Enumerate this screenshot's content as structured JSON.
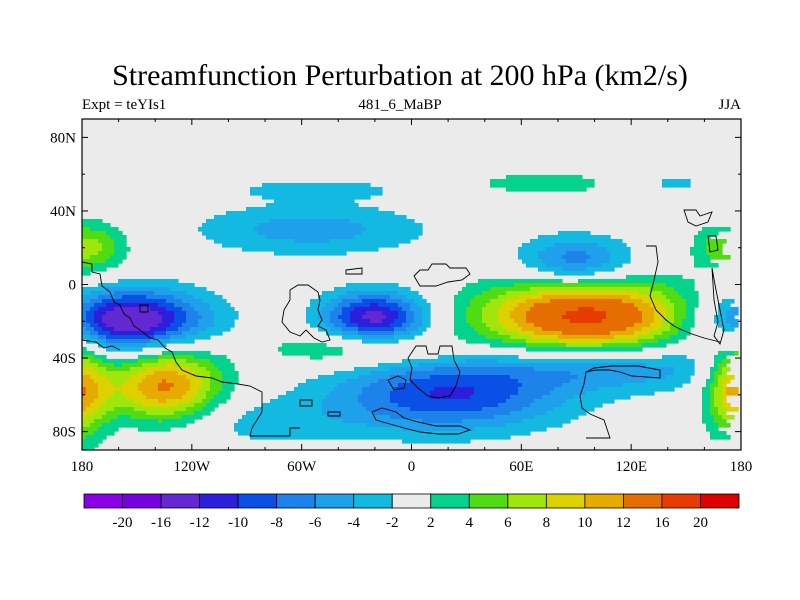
{
  "title": "Streamfunction Perturbation at 200 hPa (km2/s)",
  "subtitle_left": "Expt = teYIs1",
  "subtitle_center": "481_6_MaBP",
  "subtitle_right": "JJA",
  "axes": {
    "lon_range": [
      -180,
      180
    ],
    "lat_range": [
      -90,
      90
    ],
    "x_ticks": [
      {
        "value": -180,
        "label": "180"
      },
      {
        "value": -120,
        "label": "120W"
      },
      {
        "value": -60,
        "label": "60W"
      },
      {
        "value": 0,
        "label": "0"
      },
      {
        "value": 60,
        "label": "60E"
      },
      {
        "value": 120,
        "label": "120E"
      },
      {
        "value": 180,
        "label": "180"
      }
    ],
    "y_ticks": [
      {
        "value": 80,
        "label": "80N"
      },
      {
        "value": 40,
        "label": "40N"
      },
      {
        "value": 0,
        "label": "0"
      },
      {
        "value": -40,
        "label": "40S"
      },
      {
        "value": -80,
        "label": "80S"
      }
    ]
  },
  "colorbar": {
    "colors": [
      "#8c00e6",
      "#7800dc",
      "#6428d2",
      "#2d1edc",
      "#0a50e6",
      "#1e82eb",
      "#1ea0eb",
      "#14b9e1",
      "#ebebeb",
      "#05d28c",
      "#50dc14",
      "#a0e60a",
      "#dcd200",
      "#e6aa00",
      "#e66e00",
      "#e63c00",
      "#dc0000"
    ],
    "labels": [
      "-20",
      "-16",
      "-12",
      "-10",
      "-8",
      "-6",
      "-4",
      "-2",
      "2",
      "4",
      "6",
      "8",
      "10",
      "12",
      "16",
      "20"
    ]
  },
  "chart_data": {
    "type": "heatmap",
    "variable": "Streamfunction Perturbation at 200 hPa",
    "units": "km2/s",
    "levels": [
      -20,
      -16,
      -12,
      -10,
      -8,
      -6,
      -4,
      -2,
      2,
      4,
      6,
      8,
      10,
      12,
      16,
      20
    ],
    "features": [
      {
        "lon": -155,
        "lat": -20,
        "sx": 30,
        "sy": 12,
        "amp": -16
      },
      {
        "lon": -135,
        "lat": -55,
        "sx": 22,
        "sy": 16,
        "amp": 13
      },
      {
        "lon": -55,
        "lat": 30,
        "sx": 45,
        "sy": 10,
        "amp": -5
      },
      {
        "lon": -20,
        "lat": -18,
        "sx": 20,
        "sy": 10,
        "amp": -13
      },
      {
        "lon": 20,
        "lat": -60,
        "sx": 45,
        "sy": 14,
        "amp": -10
      },
      {
        "lon": 95,
        "lat": -17,
        "sx": 40,
        "sy": 14,
        "amp": 17
      },
      {
        "lon": 90,
        "lat": 12,
        "sx": 22,
        "sy": 10,
        "amp": -8
      },
      {
        "lon": 110,
        "lat": -45,
        "sx": 50,
        "sy": 9,
        "amp": -6
      },
      {
        "lon": -50,
        "lat": 52,
        "sx": 35,
        "sy": 4,
        "amp": -3
      },
      {
        "lon": -170,
        "lat": 20,
        "sx": 12,
        "sy": 10,
        "amp": 5
      },
      {
        "lon": 170,
        "lat": 20,
        "sx": 12,
        "sy": 10,
        "amp": 5
      },
      {
        "lon": 75,
        "lat": 55,
        "sx": 40,
        "sy": 5,
        "amp": 3
      },
      {
        "lon": 140,
        "lat": 55,
        "sx": 20,
        "sy": 5,
        "amp": -3
      },
      {
        "lon": -30,
        "lat": -35,
        "sx": 35,
        "sy": 7,
        "amp": 5
      },
      {
        "lon": 178,
        "lat": -55,
        "sx": 12,
        "sy": 20,
        "amp": 12
      },
      {
        "lon": -100,
        "lat": -75,
        "sx": 50,
        "sy": 10,
        "amp": -3
      }
    ]
  }
}
